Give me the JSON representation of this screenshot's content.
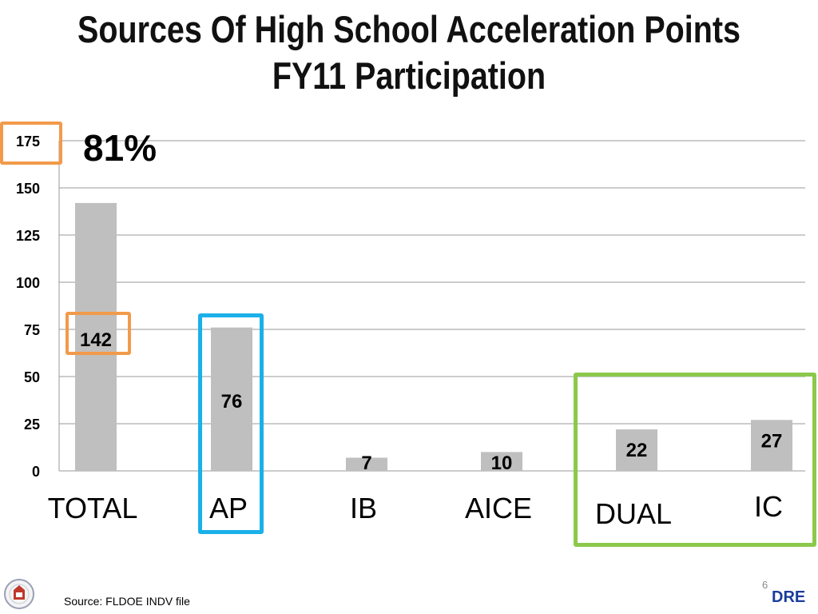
{
  "title": {
    "line1": "Sources Of High School Acceleration Points",
    "line2": "FY11 Participation"
  },
  "callout_percent": "81%",
  "source": "Source:  FLDOE INDV file",
  "page_number": "6",
  "brand_text": "DRE",
  "colors": {
    "bar": "#bfbfbf",
    "gridline": "#9a9a9a",
    "orange_highlight": "#f29a4a",
    "blue_highlight": "#1ab0e8",
    "green_highlight": "#8cc84b"
  },
  "chart_data": {
    "type": "bar",
    "categories": [
      "TOTAL",
      "AP",
      "IB",
      "AICE",
      "DUAL",
      "IC"
    ],
    "values": [
      142,
      76,
      7,
      10,
      22,
      27
    ],
    "data_labels": [
      "142",
      "76",
      "7",
      "10",
      "22",
      "27"
    ],
    "y_ticks": [
      "0",
      "25",
      "50",
      "75",
      "100",
      "125",
      "150",
      "175"
    ],
    "ylim": [
      0,
      175
    ],
    "grid": true,
    "title": "",
    "xlabel": "",
    "ylabel": ""
  }
}
